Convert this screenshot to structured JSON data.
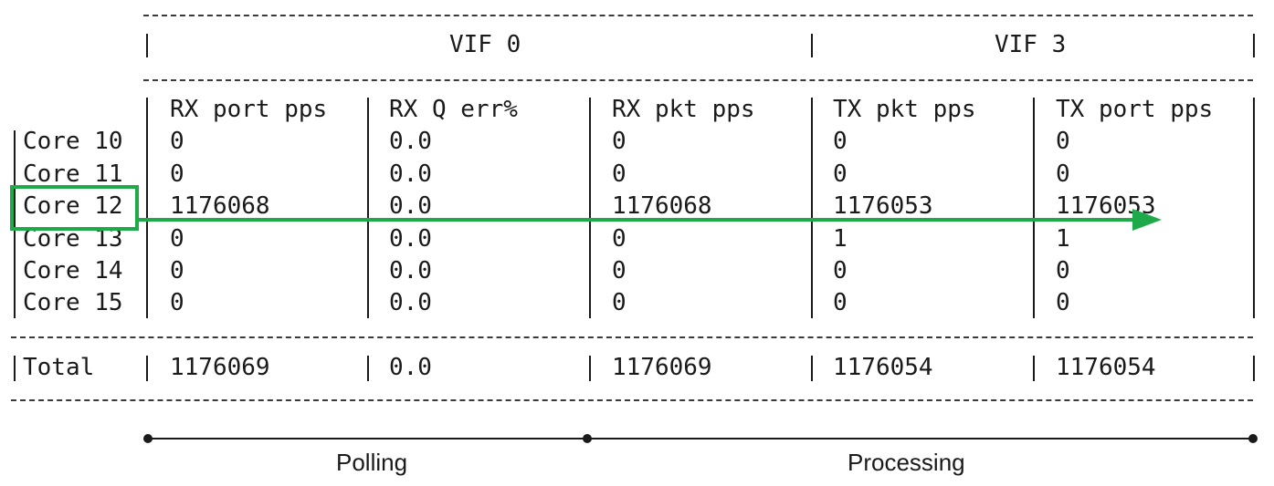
{
  "groups": [
    {
      "label": "VIF 0"
    },
    {
      "label": "VIF 3"
    }
  ],
  "columns": [
    "RX port pps",
    "RX Q err%",
    "RX pkt pps",
    "TX pkt pps",
    "TX port pps"
  ],
  "rows": [
    {
      "label": "Core 10",
      "cells": [
        "0",
        "0.0",
        "0",
        "0",
        "0"
      ]
    },
    {
      "label": "Core 11",
      "cells": [
        "0",
        "0.0",
        "0",
        "0",
        "0"
      ]
    },
    {
      "label": "Core 12",
      "cells": [
        "1176068",
        "0.0",
        "1176068",
        "1176053",
        "1176053"
      ],
      "highlighted": true
    },
    {
      "label": "Core 13",
      "cells": [
        "0",
        "0.0",
        "0",
        "1",
        "1"
      ]
    },
    {
      "label": "Core 14",
      "cells": [
        "0",
        "0.0",
        "0",
        "0",
        "0"
      ]
    },
    {
      "label": "Core 15",
      "cells": [
        "0",
        "0.0",
        "0",
        "0",
        "0"
      ]
    }
  ],
  "total": {
    "label": "Total",
    "cells": [
      "1176069",
      "0.0",
      "1176069",
      "1176054",
      "1176054"
    ]
  },
  "phases": [
    {
      "label": "Polling"
    },
    {
      "label": "Processing"
    }
  ],
  "colors": {
    "highlight": "#1faa4a",
    "text": "#1a1a1a"
  }
}
